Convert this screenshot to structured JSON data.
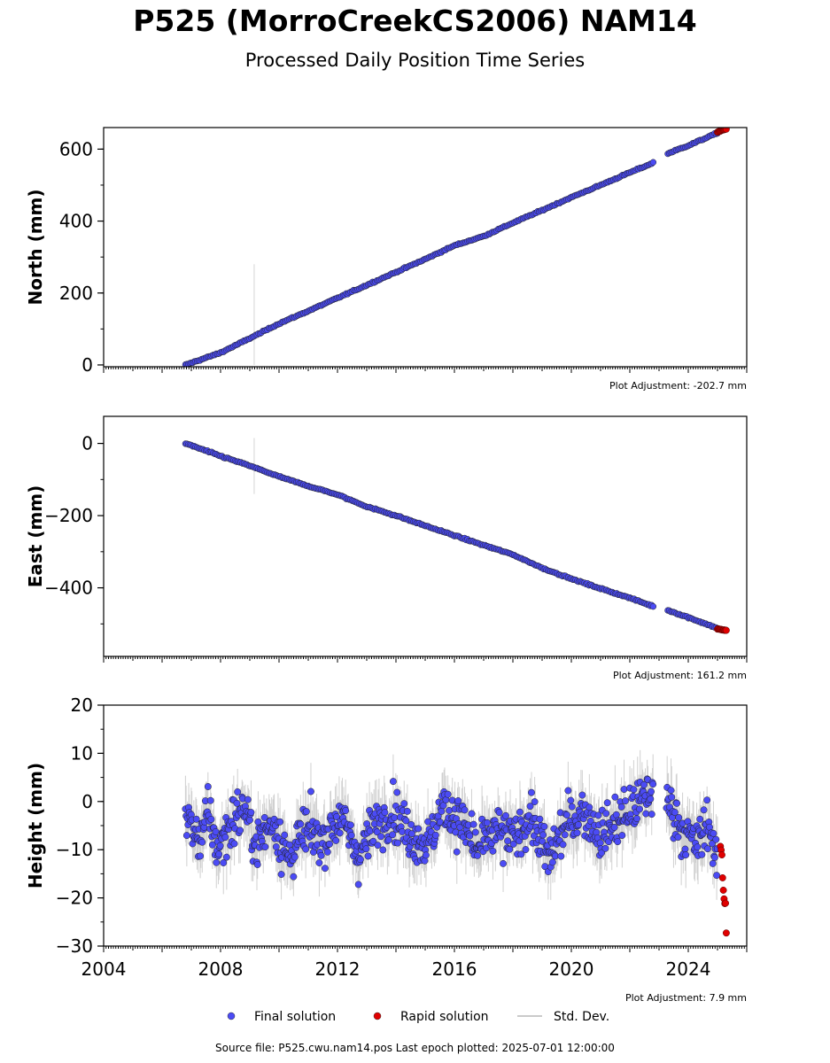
{
  "title": "P525 (MorroCreekCS2006) NAM14",
  "subtitle": "Processed Daily Position Time Series",
  "footer": "Source file: P525.cwu.nam14.pos  Last epoch plotted: 2025-07-01 12:00:00",
  "colors": {
    "final": "#4b4bf5",
    "rapid": "#e00000",
    "std": "#aaaaaa",
    "edge": "#222222"
  },
  "legend": [
    {
      "key": "final",
      "label": "Final solution"
    },
    {
      "key": "rapid",
      "label": "Rapid solution"
    },
    {
      "key": "std",
      "label": "Std. Dev."
    }
  ],
  "chart_data": [
    {
      "type": "scatter",
      "ylabel": "North (mm)",
      "adjustment": "Plot Adjustment: -202.7 mm",
      "xlim": [
        2004,
        2026
      ],
      "ylim": [
        -5,
        660
      ],
      "yticks": [
        0,
        200,
        400,
        600
      ],
      "yticklabels": [
        "0",
        "200",
        "400",
        "600"
      ],
      "series": [
        {
          "name": "Final solution",
          "x": [
            2006.8,
            2008.0,
            2009.0,
            2010.0,
            2011.0,
            2012.0,
            2013.0,
            2014.0,
            2015.0,
            2016.0,
            2017.0,
            2018.0,
            2019.0,
            2020.0,
            2021.0,
            2022.0,
            2022.75,
            2023.3,
            2024.0,
            2025.0
          ],
          "y": [
            0,
            34,
            74,
            115,
            150,
            186,
            222,
            258,
            294,
            332,
            358,
            395,
            430,
            466,
            500,
            535,
            560,
            588,
            610,
            645
          ]
        },
        {
          "name": "Rapid solution",
          "x": [
            2025.0,
            2025.15,
            2025.3
          ],
          "y": [
            648,
            652,
            656
          ]
        }
      ]
    },
    {
      "type": "scatter",
      "ylabel": "East (mm)",
      "adjustment": "Plot Adjustment: 161.2 mm",
      "xlim": [
        2004,
        2026
      ],
      "ylim": [
        -590,
        75
      ],
      "yticks": [
        -400,
        -200,
        0
      ],
      "yticklabels": [
        "−400",
        "−200",
        "0"
      ],
      "series": [
        {
          "name": "Final solution",
          "x": [
            2006.8,
            2008.0,
            2009.0,
            2010.0,
            2011.0,
            2012.0,
            2013.0,
            2014.0,
            2015.0,
            2016.0,
            2017.0,
            2018.0,
            2019.0,
            2020.0,
            2021.0,
            2022.0,
            2022.75,
            2023.3,
            2024.0,
            2025.0
          ],
          "y": [
            0,
            -35,
            -62,
            -92,
            -118,
            -142,
            -175,
            -200,
            -228,
            -255,
            -282,
            -308,
            -345,
            -375,
            -402,
            -428,
            -450,
            -462,
            -482,
            -512
          ]
        },
        {
          "name": "Rapid solution",
          "x": [
            2025.0,
            2025.15,
            2025.3
          ],
          "y": [
            -514,
            -516,
            -518
          ]
        }
      ]
    },
    {
      "type": "scatter",
      "ylabel": "Height (mm)",
      "adjustment": "Plot Adjustment: 7.9 mm",
      "xlim": [
        2004,
        2026
      ],
      "ylim": [
        -30,
        20
      ],
      "yticks": [
        -30,
        -20,
        -10,
        0,
        10,
        20
      ],
      "yticklabels": [
        "−30",
        "−20",
        "−10",
        "0",
        "10",
        "20"
      ],
      "xticks": [
        2004,
        2008,
        2012,
        2016,
        2020,
        2024
      ],
      "xticklabels": [
        "2004",
        "2008",
        "2012",
        "2016",
        "2020",
        "2024"
      ],
      "series": [
        {
          "name": "Final solution",
          "x": [
            2006.8,
            2007.2,
            2007.6,
            2007.9,
            2008.3,
            2008.8,
            2009.2,
            2009.8,
            2010.3,
            2010.9,
            2011.5,
            2012.1,
            2012.7,
            2013.3,
            2013.9,
            2014.5,
            2015.1,
            2015.6,
            2016.2,
            2016.8,
            2017.4,
            2018.0,
            2018.6,
            2019.2,
            2019.8,
            2020.4,
            2021.0,
            2021.6,
            2022.2,
            2022.7,
            2023.4,
            2023.8,
            2024.3,
            2024.7,
            2025.0
          ],
          "y": [
            -2,
            -8,
            -3,
            -10,
            -5,
            -1,
            -9,
            -4,
            -12,
            -6,
            -8,
            -3,
            -11,
            -5,
            -2,
            -7,
            -9,
            -1,
            -4,
            -10,
            -6,
            -8,
            -3,
            -12,
            -5,
            -2,
            -7,
            -4,
            -1,
            2,
            -1,
            -6,
            -9,
            -4,
            -14
          ]
        },
        {
          "name": "Rapid solution",
          "x": [
            2025.1,
            2025.15,
            2025.2,
            2025.25,
            2025.3
          ],
          "y": [
            -8,
            -12,
            -18,
            -22,
            -26
          ]
        }
      ]
    }
  ]
}
